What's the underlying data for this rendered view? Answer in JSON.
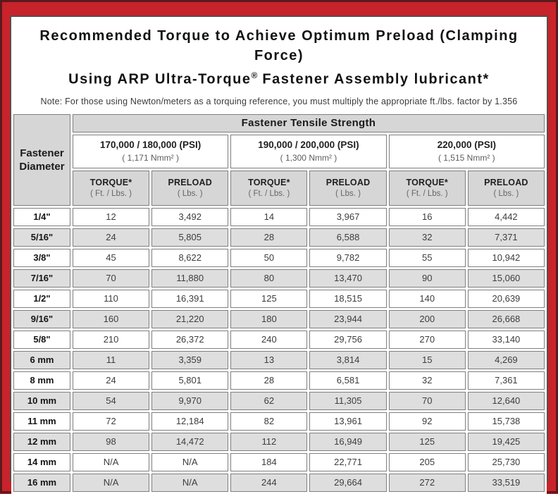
{
  "header": {
    "title_line1": "Recommended Torque to Achieve Optimum Preload (Clamping Force)",
    "title_line2_pre": "Using ARP Ultra-Torque",
    "title_line2_reg": "®",
    "title_line2_post": " Fastener Assembly lubricant*",
    "note": "Note: For those using Newton/meters as a torquing reference, you must multiply the appropriate ft./lbs. factor by 1.356"
  },
  "table": {
    "corner": {
      "line1": "Fastener",
      "line2": "Diameter"
    },
    "group_header": "Fastener Tensile Strength",
    "strength_columns": [
      {
        "psi": "170,000 / 180,000 (PSI)",
        "nmm": "( 1,171 Nmm² )"
      },
      {
        "psi": "190,000 / 200,000 (PSI)",
        "nmm": "( 1,300 Nmm² )"
      },
      {
        "psi": "220,000 (PSI)",
        "nmm": "( 1,515 Nmm² )"
      }
    ],
    "sub_headers": {
      "torque_label": "TORQUE*",
      "torque_unit": "( Ft. / Lbs. )",
      "preload_label": "PRELOAD",
      "preload_unit": "( Lbs. )"
    },
    "rows": [
      {
        "diameter": "1/4\"",
        "values": [
          "12",
          "3,492",
          "14",
          "3,967",
          "16",
          "4,442"
        ]
      },
      {
        "diameter": "5/16\"",
        "values": [
          "24",
          "5,805",
          "28",
          "6,588",
          "32",
          "7,371"
        ]
      },
      {
        "diameter": "3/8\"",
        "values": [
          "45",
          "8,622",
          "50",
          "9,782",
          "55",
          "10,942"
        ]
      },
      {
        "diameter": "7/16\"",
        "values": [
          "70",
          "11,880",
          "80",
          "13,470",
          "90",
          "15,060"
        ]
      },
      {
        "diameter": "1/2\"",
        "values": [
          "110",
          "16,391",
          "125",
          "18,515",
          "140",
          "20,639"
        ]
      },
      {
        "diameter": "9/16\"",
        "values": [
          "160",
          "21,220",
          "180",
          "23,944",
          "200",
          "26,668"
        ]
      },
      {
        "diameter": "5/8\"",
        "values": [
          "210",
          "26,372",
          "240",
          "29,756",
          "270",
          "33,140"
        ]
      },
      {
        "diameter": "6 mm",
        "values": [
          "11",
          "3,359",
          "13",
          "3,814",
          "15",
          "4,269"
        ]
      },
      {
        "diameter": "8 mm",
        "values": [
          "24",
          "5,801",
          "28",
          "6,581",
          "32",
          "7,361"
        ]
      },
      {
        "diameter": "10 mm",
        "values": [
          "54",
          "9,970",
          "62",
          "11,305",
          "70",
          "12,640"
        ]
      },
      {
        "diameter": "11 mm",
        "values": [
          "72",
          "12,184",
          "82",
          "13,961",
          "92",
          "15,738"
        ]
      },
      {
        "diameter": "12 mm",
        "values": [
          "98",
          "14,472",
          "112",
          "16,949",
          "125",
          "19,425"
        ]
      },
      {
        "diameter": "14 mm",
        "values": [
          "N/A",
          "N/A",
          "184",
          "22,771",
          "205",
          "25,730"
        ]
      },
      {
        "diameter": "16 mm",
        "values": [
          "N/A",
          "N/A",
          "244",
          "29,664",
          "272",
          "33,519"
        ]
      }
    ]
  },
  "colors": {
    "frame_red": "#c8232b",
    "frame_dark_outline": "#5b191d",
    "panel_border": "#565049",
    "header_gray": "#d6d6d6",
    "row_alt_gray": "#dedede",
    "cell_border": "#7f7f7f"
  }
}
